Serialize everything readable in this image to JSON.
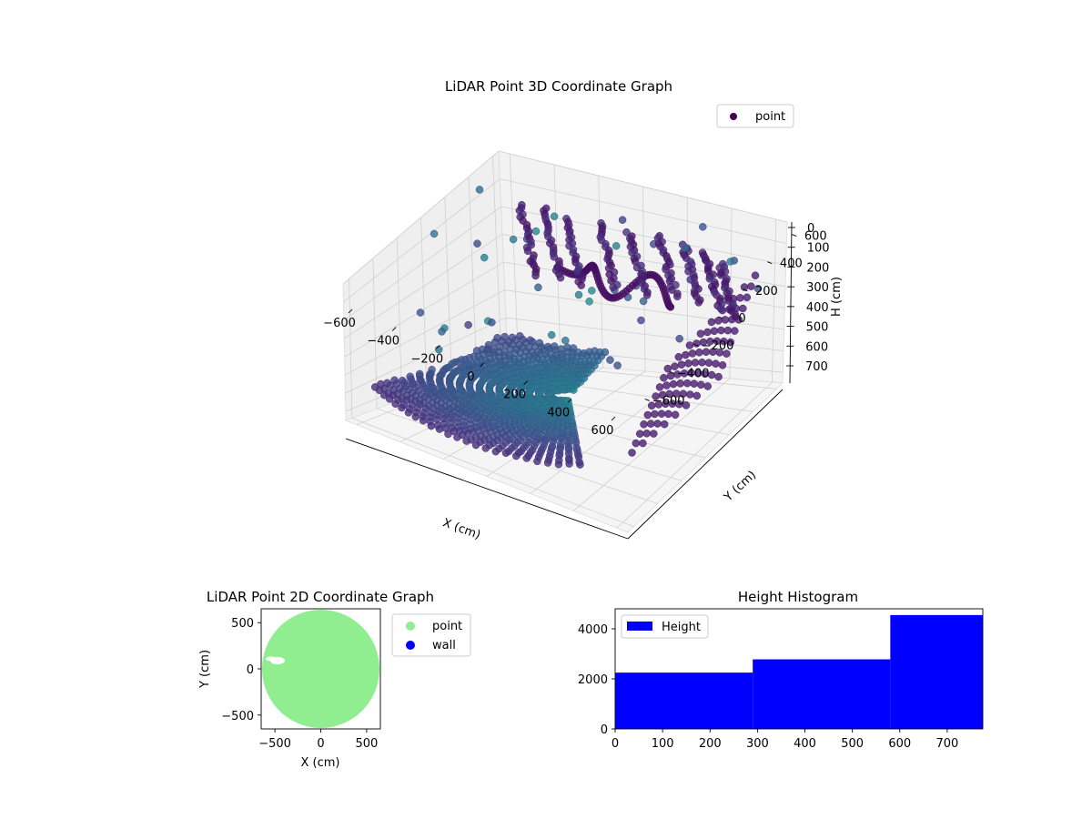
{
  "chart_data": [
    {
      "type": "scatter",
      "projection": "3d",
      "title": "LiDAR Point 3D Coordinate Graph",
      "xlabel": "X (cm)",
      "ylabel": "Y (cm)",
      "zlabel": "H (cm)",
      "x_ticks": [
        "−600",
        "−400",
        "−200",
        "0",
        "200",
        "400",
        "600"
      ],
      "y_ticks": [
        "−600",
        "−400",
        "−200",
        "0",
        "200",
        "400",
        "600"
      ],
      "z_ticks": [
        "0",
        "100",
        "200",
        "300",
        "400",
        "500",
        "600",
        "700"
      ],
      "xlim": [
        -650,
        650
      ],
      "ylim": [
        -650,
        650
      ],
      "zlim": [
        0,
        750
      ],
      "z_inverted": true,
      "grid": true,
      "legend": {
        "placement": "upper-right",
        "entries": [
          {
            "label": "point",
            "color": "#440154"
          }
        ]
      },
      "colormap": "viridis",
      "structures": {
        "floor_bowl": {
          "x_range": [
            -650,
            560
          ],
          "y_range": [
            -650,
            650
          ],
          "height_range": [
            620,
            730
          ]
        },
        "wall_columns": {
          "count": 9,
          "height_range": [
            60,
            420
          ]
        },
        "wall_ribbon": {
          "x_range": [
            -200,
            350
          ],
          "height_range": [
            140,
            260
          ]
        },
        "far_right_wall": {
          "x_range": [
            400,
            600
          ],
          "height_range": [
            100,
            680
          ]
        },
        "scattered_outliers": "sparse points above and around the main cloud"
      }
    },
    {
      "type": "scatter",
      "title": "LiDAR Point 2D Coordinate Graph",
      "xlabel": "X (cm)",
      "ylabel": "Y (cm)",
      "x_ticks": [
        "−500",
        "0",
        "500"
      ],
      "y_ticks": [
        "500",
        "0",
        "−500"
      ],
      "xlim": [
        -650,
        650
      ],
      "ylim": [
        -650,
        650
      ],
      "region": "dense disk of points of radius about 640 cm centred at the origin, small gap near X −450, Y 100",
      "legend": {
        "placement": "outside-right",
        "entries": [
          {
            "label": "point",
            "color": "#90ee90"
          },
          {
            "label": "wall",
            "color": "#0000ff"
          }
        ]
      }
    },
    {
      "type": "bar",
      "title": "Height Histogram",
      "bins": [
        {
          "from": 0,
          "to": 290,
          "count": 2250
        },
        {
          "from": 290,
          "to": 580,
          "count": 2780
        },
        {
          "from": 580,
          "to": 775,
          "count": 4550
        }
      ],
      "x_ticks": [
        "0",
        "100",
        "200",
        "300",
        "400",
        "500",
        "600",
        "700"
      ],
      "y_ticks": [
        "0",
        "2000",
        "4000"
      ],
      "xlim": [
        0,
        775
      ],
      "ylim": [
        0,
        4800
      ],
      "color": "#0000ff",
      "legend": {
        "placement": "upper-left",
        "entries": [
          {
            "label": "Height",
            "color": "#0000ff"
          }
        ]
      }
    }
  ]
}
